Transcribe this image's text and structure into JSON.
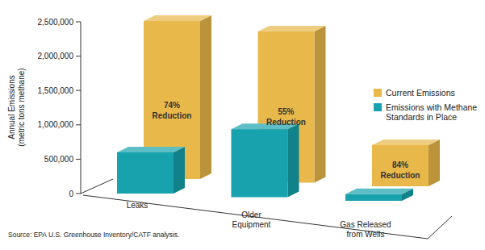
{
  "chart_data": {
    "type": "bar",
    "y_label": "Annual Emissions (metric tons methane)",
    "categories": [
      "Leaks",
      "Older Equipment",
      "Gas Released from Wells"
    ],
    "series": [
      {
        "name": "Current Emissions",
        "color": "#e8b84a",
        "values": [
          2300000,
          2200000,
          600000
        ]
      },
      {
        "name": "Emissions with Methane Standards in Place",
        "color": "#17a2ad",
        "values": [
          600000,
          990000,
          96000
        ]
      }
    ],
    "annotations": [
      "74% Reduction",
      "55% Reduction",
      "84% Reduction"
    ],
    "source": "Source: EPA U.S. Greenhouse Inventory/CATF analysis.",
    "ylim": [
      0,
      2500000
    ],
    "yticks": [
      0,
      {
        "value": 500000,
        "label": "500,000"
      },
      {
        "value": 1000000,
        "label": "1,000,000"
      },
      {
        "value": 1500000,
        "label": "1,500,000"
      },
      {
        "value": 2000000,
        "label": "2,000,000"
      },
      {
        "value": 2500000,
        "label": "2,500,000"
      }
    ],
    "grid": false,
    "legend": "right"
  }
}
